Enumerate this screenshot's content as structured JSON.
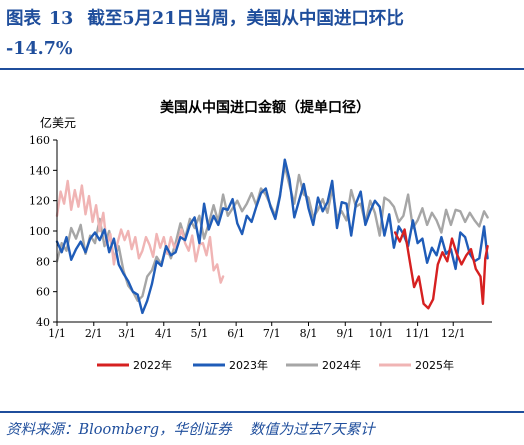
{
  "header": {
    "label": "图表",
    "number": "13",
    "title_line1": "截至5月21日当周，美国从中国进口环比",
    "title_line2": "-14.7%"
  },
  "source": {
    "text": "资料来源：Bloomberg，华创证券",
    "note": "数值为过去7天累计"
  },
  "chart_data": {
    "type": "line",
    "title": "美国从中国进口金额（提单口径）",
    "ylabel": "亿美元",
    "ylim": [
      40,
      160
    ],
    "yticks": [
      40,
      60,
      80,
      100,
      120,
      140,
      160
    ],
    "x_ticks": [
      "1/1",
      "2/1",
      "3/1",
      "4/1",
      "5/1",
      "6/1",
      "7/1",
      "8/1",
      "9/1",
      "10/1",
      "11/1",
      "12/1"
    ],
    "x_tick_days": [
      1,
      32,
      60,
      91,
      121,
      152,
      182,
      213,
      244,
      274,
      305,
      335
    ],
    "xlim": [
      1,
      366
    ],
    "legend_position": "bottom",
    "series": [
      {
        "name": "2022年",
        "color": "#d62020",
        "x": [
          286,
          290,
          294,
          298,
          302,
          306,
          310,
          314,
          318,
          322,
          326,
          330,
          334,
          338,
          342,
          346,
          350,
          354,
          358,
          360,
          362,
          364
        ],
        "y": [
          99,
          93,
          101,
          82,
          63,
          70,
          52,
          49,
          55,
          78,
          86,
          80,
          95,
          85,
          78,
          84,
          88,
          75,
          70,
          52,
          82,
          90
        ]
      },
      {
        "name": "2023年",
        "color": "#1f5cb8",
        "x": [
          1,
          5,
          9,
          13,
          17,
          21,
          25,
          29,
          33,
          37,
          41,
          45,
          49,
          53,
          57,
          61,
          65,
          69,
          73,
          77,
          81,
          85,
          89,
          93,
          97,
          101,
          105,
          109,
          113,
          117,
          121,
          125,
          129,
          133,
          137,
          141,
          145,
          149,
          153,
          157,
          161,
          165,
          169,
          173,
          177,
          181,
          185,
          189,
          193,
          197,
          201,
          205,
          209,
          213,
          217,
          221,
          225,
          229,
          233,
          237,
          241,
          245,
          249,
          253,
          257,
          261,
          265,
          269,
          273,
          277,
          281,
          285,
          289,
          293,
          297,
          301,
          305,
          309,
          313,
          317,
          321,
          325,
          329,
          333,
          337,
          341,
          345,
          349,
          353,
          357,
          361,
          364
        ],
        "y": [
          93,
          86,
          96,
          81,
          88,
          93,
          86,
          95,
          99,
          94,
          101,
          86,
          95,
          78,
          72,
          67,
          60,
          58,
          46,
          54,
          65,
          80,
          77,
          90,
          84,
          86,
          96,
          94,
          104,
          109,
          92,
          118,
          101,
          110,
          104,
          115,
          114,
          121,
          105,
          98,
          110,
          106,
          116,
          125,
          128,
          116,
          108,
          123,
          147,
          134,
          109,
          120,
          131,
          115,
          104,
          122,
          113,
          119,
          133,
          102,
          119,
          118,
          97,
          118,
          126,
          104,
          113,
          120,
          116,
          97,
          111,
          89,
          103,
          98,
          90,
          107,
          92,
          95,
          79,
          89,
          84,
          96,
          85,
          88,
          75,
          99,
          96,
          85,
          80,
          82,
          103,
          82
        ]
      },
      {
        "name": "2024年",
        "color": "#a6a6a6",
        "x": [
          1,
          5,
          9,
          13,
          17,
          21,
          25,
          29,
          33,
          37,
          41,
          45,
          49,
          53,
          57,
          61,
          65,
          69,
          73,
          77,
          81,
          85,
          89,
          93,
          97,
          101,
          105,
          109,
          113,
          117,
          121,
          125,
          129,
          133,
          137,
          141,
          145,
          149,
          153,
          157,
          161,
          165,
          169,
          173,
          177,
          181,
          185,
          189,
          193,
          197,
          201,
          205,
          209,
          213,
          217,
          221,
          225,
          229,
          233,
          237,
          241,
          245,
          249,
          253,
          257,
          261,
          265,
          269,
          273,
          277,
          281,
          285,
          289,
          293,
          297,
          301,
          305,
          309,
          313,
          317,
          321,
          325,
          329,
          333,
          337,
          341,
          345,
          349,
          353,
          357,
          361,
          364
        ],
        "y": [
          80,
          92,
          87,
          102,
          95,
          104,
          85,
          97,
          92,
          108,
          90,
          100,
          82,
          90,
          74,
          64,
          60,
          54,
          57,
          70,
          74,
          83,
          78,
          90,
          82,
          92,
          105,
          95,
          108,
          102,
          110,
          95,
          105,
          117,
          106,
          124,
          110,
          115,
          120,
          113,
          118,
          125,
          117,
          128,
          124,
          117,
          110,
          124,
          143,
          130,
          118,
          137,
          124,
          122,
          109,
          114,
          121,
          112,
          128,
          109,
          113,
          107,
          127,
          116,
          118,
          105,
          120,
          112,
          97,
          122,
          120,
          116,
          106,
          110,
          124,
          102,
          107,
          115,
          104,
          112,
          107,
          99,
          114,
          104,
          114,
          113,
          106,
          112,
          107,
          103,
          113,
          109
        ]
      },
      {
        "name": "2025年",
        "color": "#f0b4b4",
        "x": [
          1,
          4,
          7,
          10,
          13,
          16,
          19,
          22,
          25,
          28,
          31,
          34,
          37,
          40,
          43,
          46,
          49,
          52,
          55,
          58,
          61,
          64,
          67,
          70,
          73,
          76,
          79,
          82,
          85,
          88,
          91,
          94,
          97,
          100,
          103,
          106,
          109,
          112,
          115,
          118,
          121,
          124,
          127,
          130,
          133,
          136,
          139,
          141
        ],
        "y": [
          110,
          126,
          118,
          133,
          114,
          127,
          116,
          130,
          111,
          123,
          106,
          117,
          100,
          112,
          91,
          98,
          78,
          92,
          101,
          94,
          100,
          88,
          96,
          82,
          87,
          96,
          91,
          83,
          98,
          89,
          96,
          85,
          96,
          89,
          93,
          101,
          92,
          87,
          97,
          80,
          91,
          92,
          84,
          96,
          74,
          78,
          66,
          70
        ]
      }
    ]
  }
}
